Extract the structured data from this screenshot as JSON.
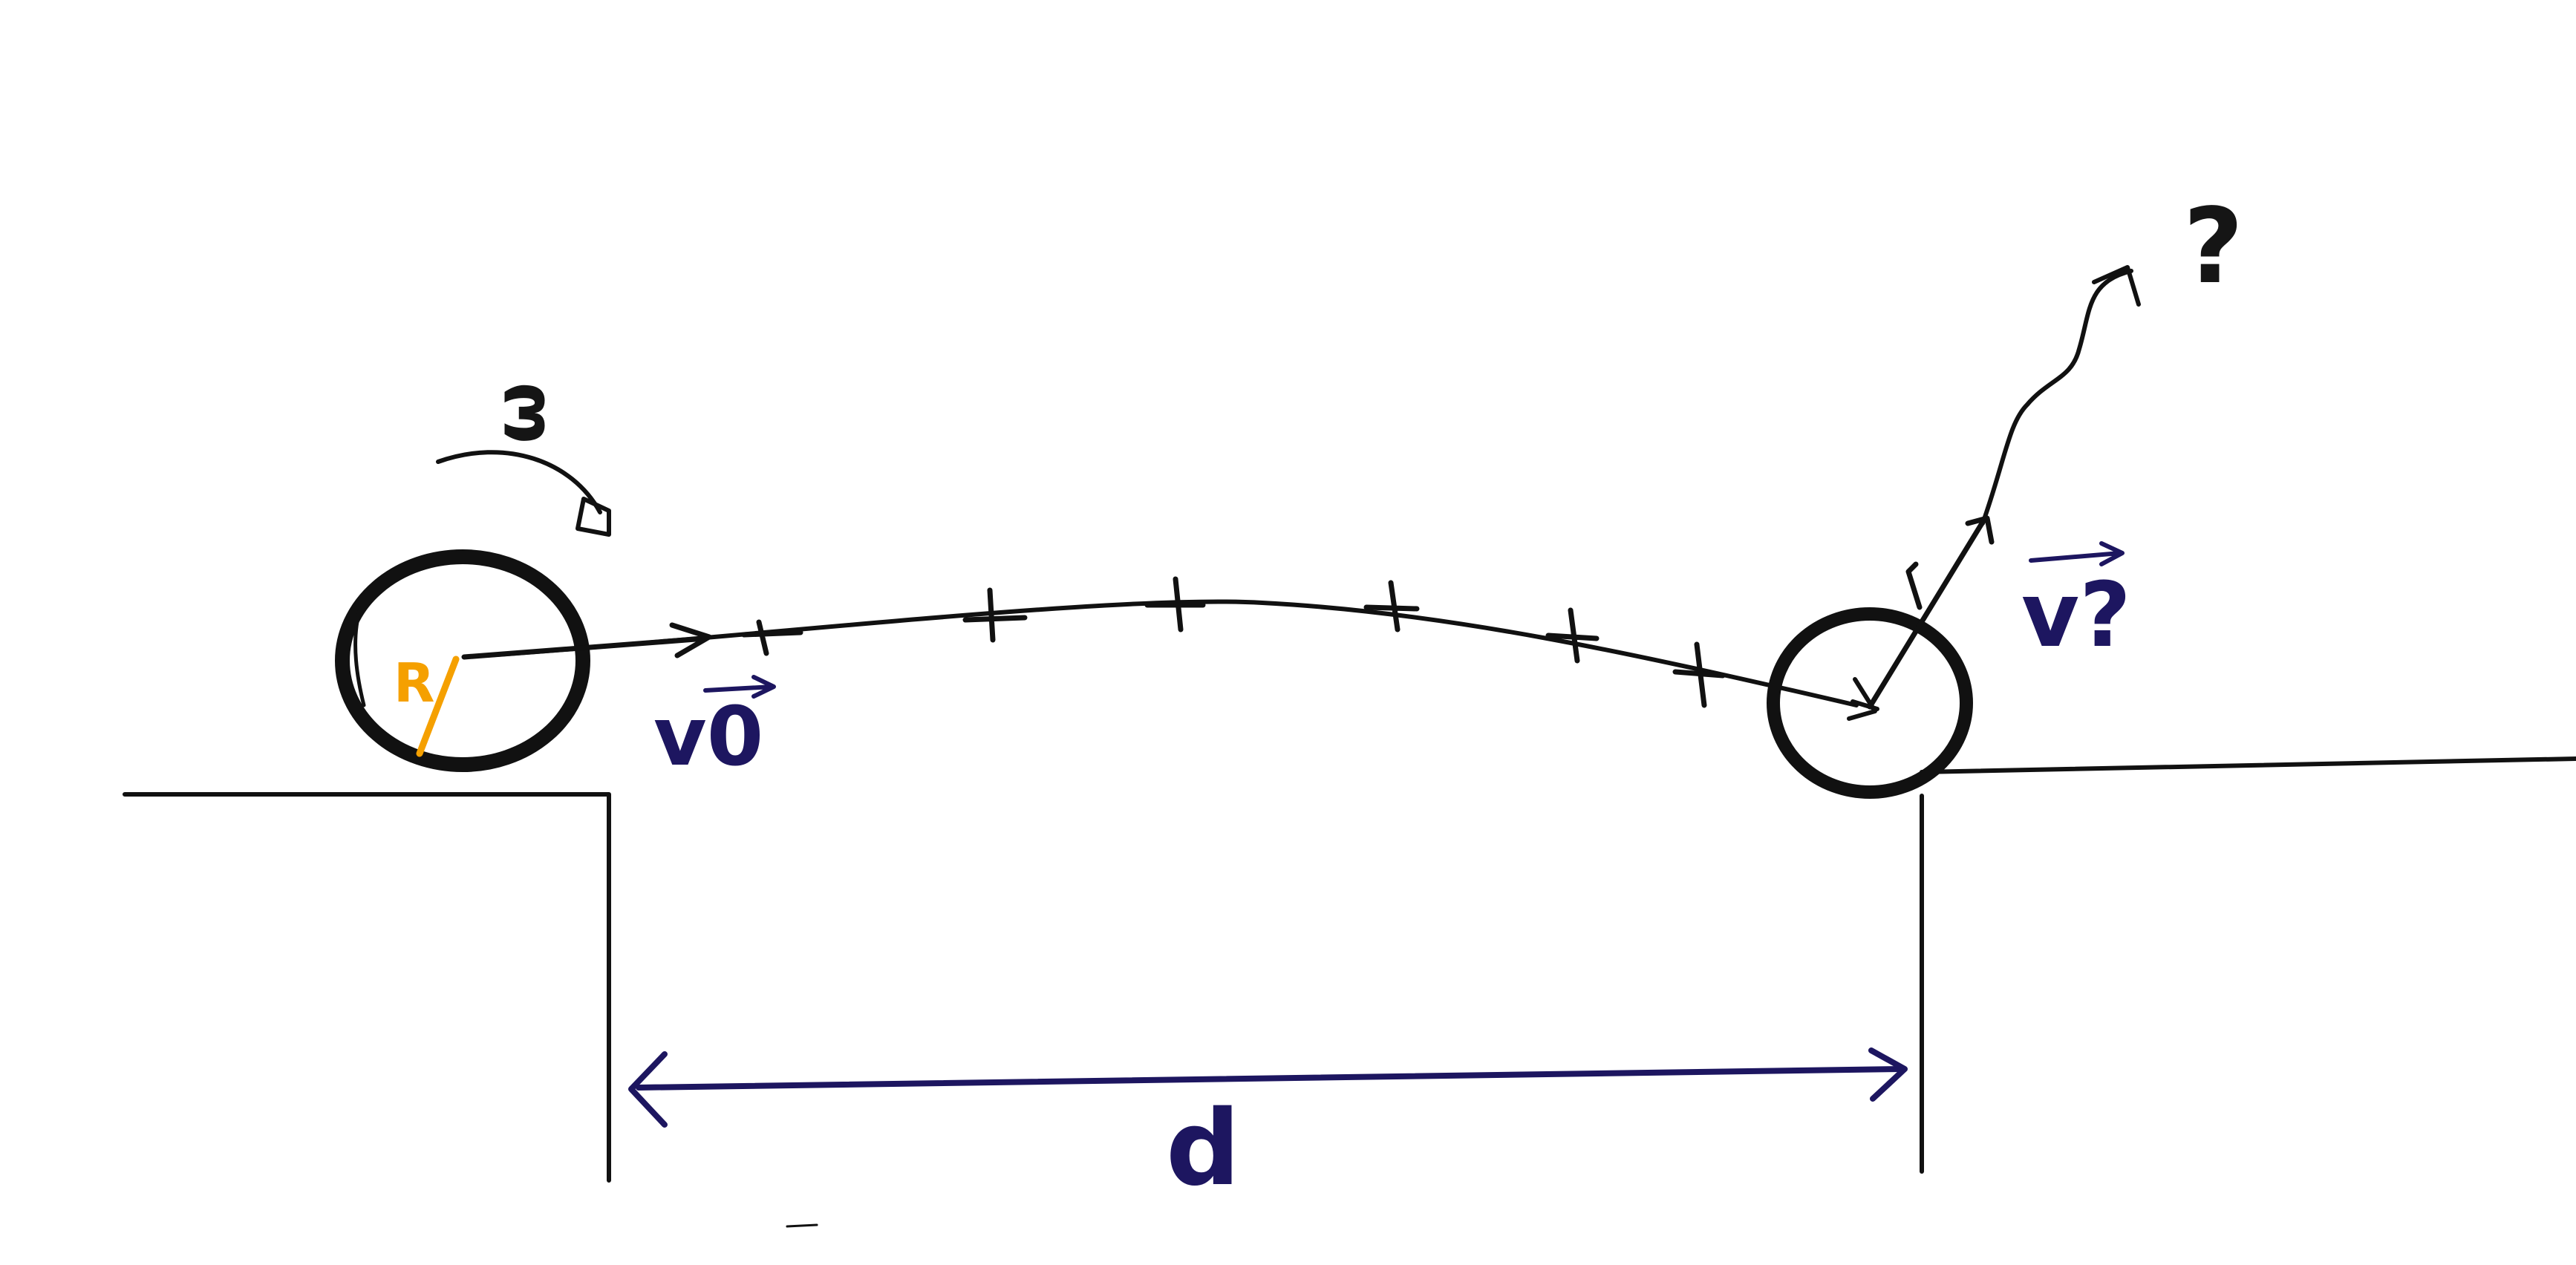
{
  "diagram": {
    "labels": {
      "omega": "ω",
      "radius": "R",
      "initial_velocity": "v0",
      "final_velocity": "v?",
      "unknown": "?",
      "distance": "d"
    },
    "colors": {
      "ink": "#111111",
      "pen_blue": "#1d1660",
      "pen_orange": "#f5a000",
      "paper": "#ffffff"
    },
    "icons": {
      "rotation_arrow": "curved-arrow-icon",
      "trajectory_ticks": "tick-mark-icon"
    }
  }
}
